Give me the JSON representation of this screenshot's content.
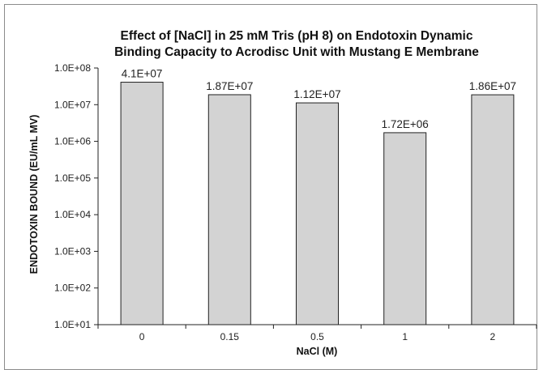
{
  "chart_data": {
    "type": "bar",
    "title_lines": [
      "Effect of [NaCl] in 25 mM Tris (pH 8) on Endotoxin Dynamic",
      "Binding Capacity to Acrodisc Unit with Mustang E Membrane"
    ],
    "xlabel": "NaCl (M)",
    "ylabel": "ENDOTOXIN BOUND (EU/mL MV)",
    "y_scale": "log",
    "ylim": [
      10,
      100000000
    ],
    "y_ticks": [
      10,
      100,
      1000,
      10000,
      100000,
      1000000,
      10000000,
      100000000
    ],
    "y_tick_labels": [
      "1.0E+01",
      "1.0E+02",
      "1.0E+03",
      "1.0E+04",
      "1.0E+05",
      "1.0E+06",
      "1.0E+07",
      "1.0E+08"
    ],
    "categories": [
      "0",
      "0.15",
      "0.5",
      "1",
      "2"
    ],
    "values": [
      41000000,
      18700000,
      11200000,
      1720000,
      18600000
    ],
    "data_labels": [
      "4.1E+07",
      "1.87E+07",
      "1.12E+07",
      "1.72E+06",
      "1.86E+07"
    ],
    "bar_color": "#d3d3d3",
    "bar_edge_color": "#222222",
    "grid": false,
    "legend": "none"
  }
}
